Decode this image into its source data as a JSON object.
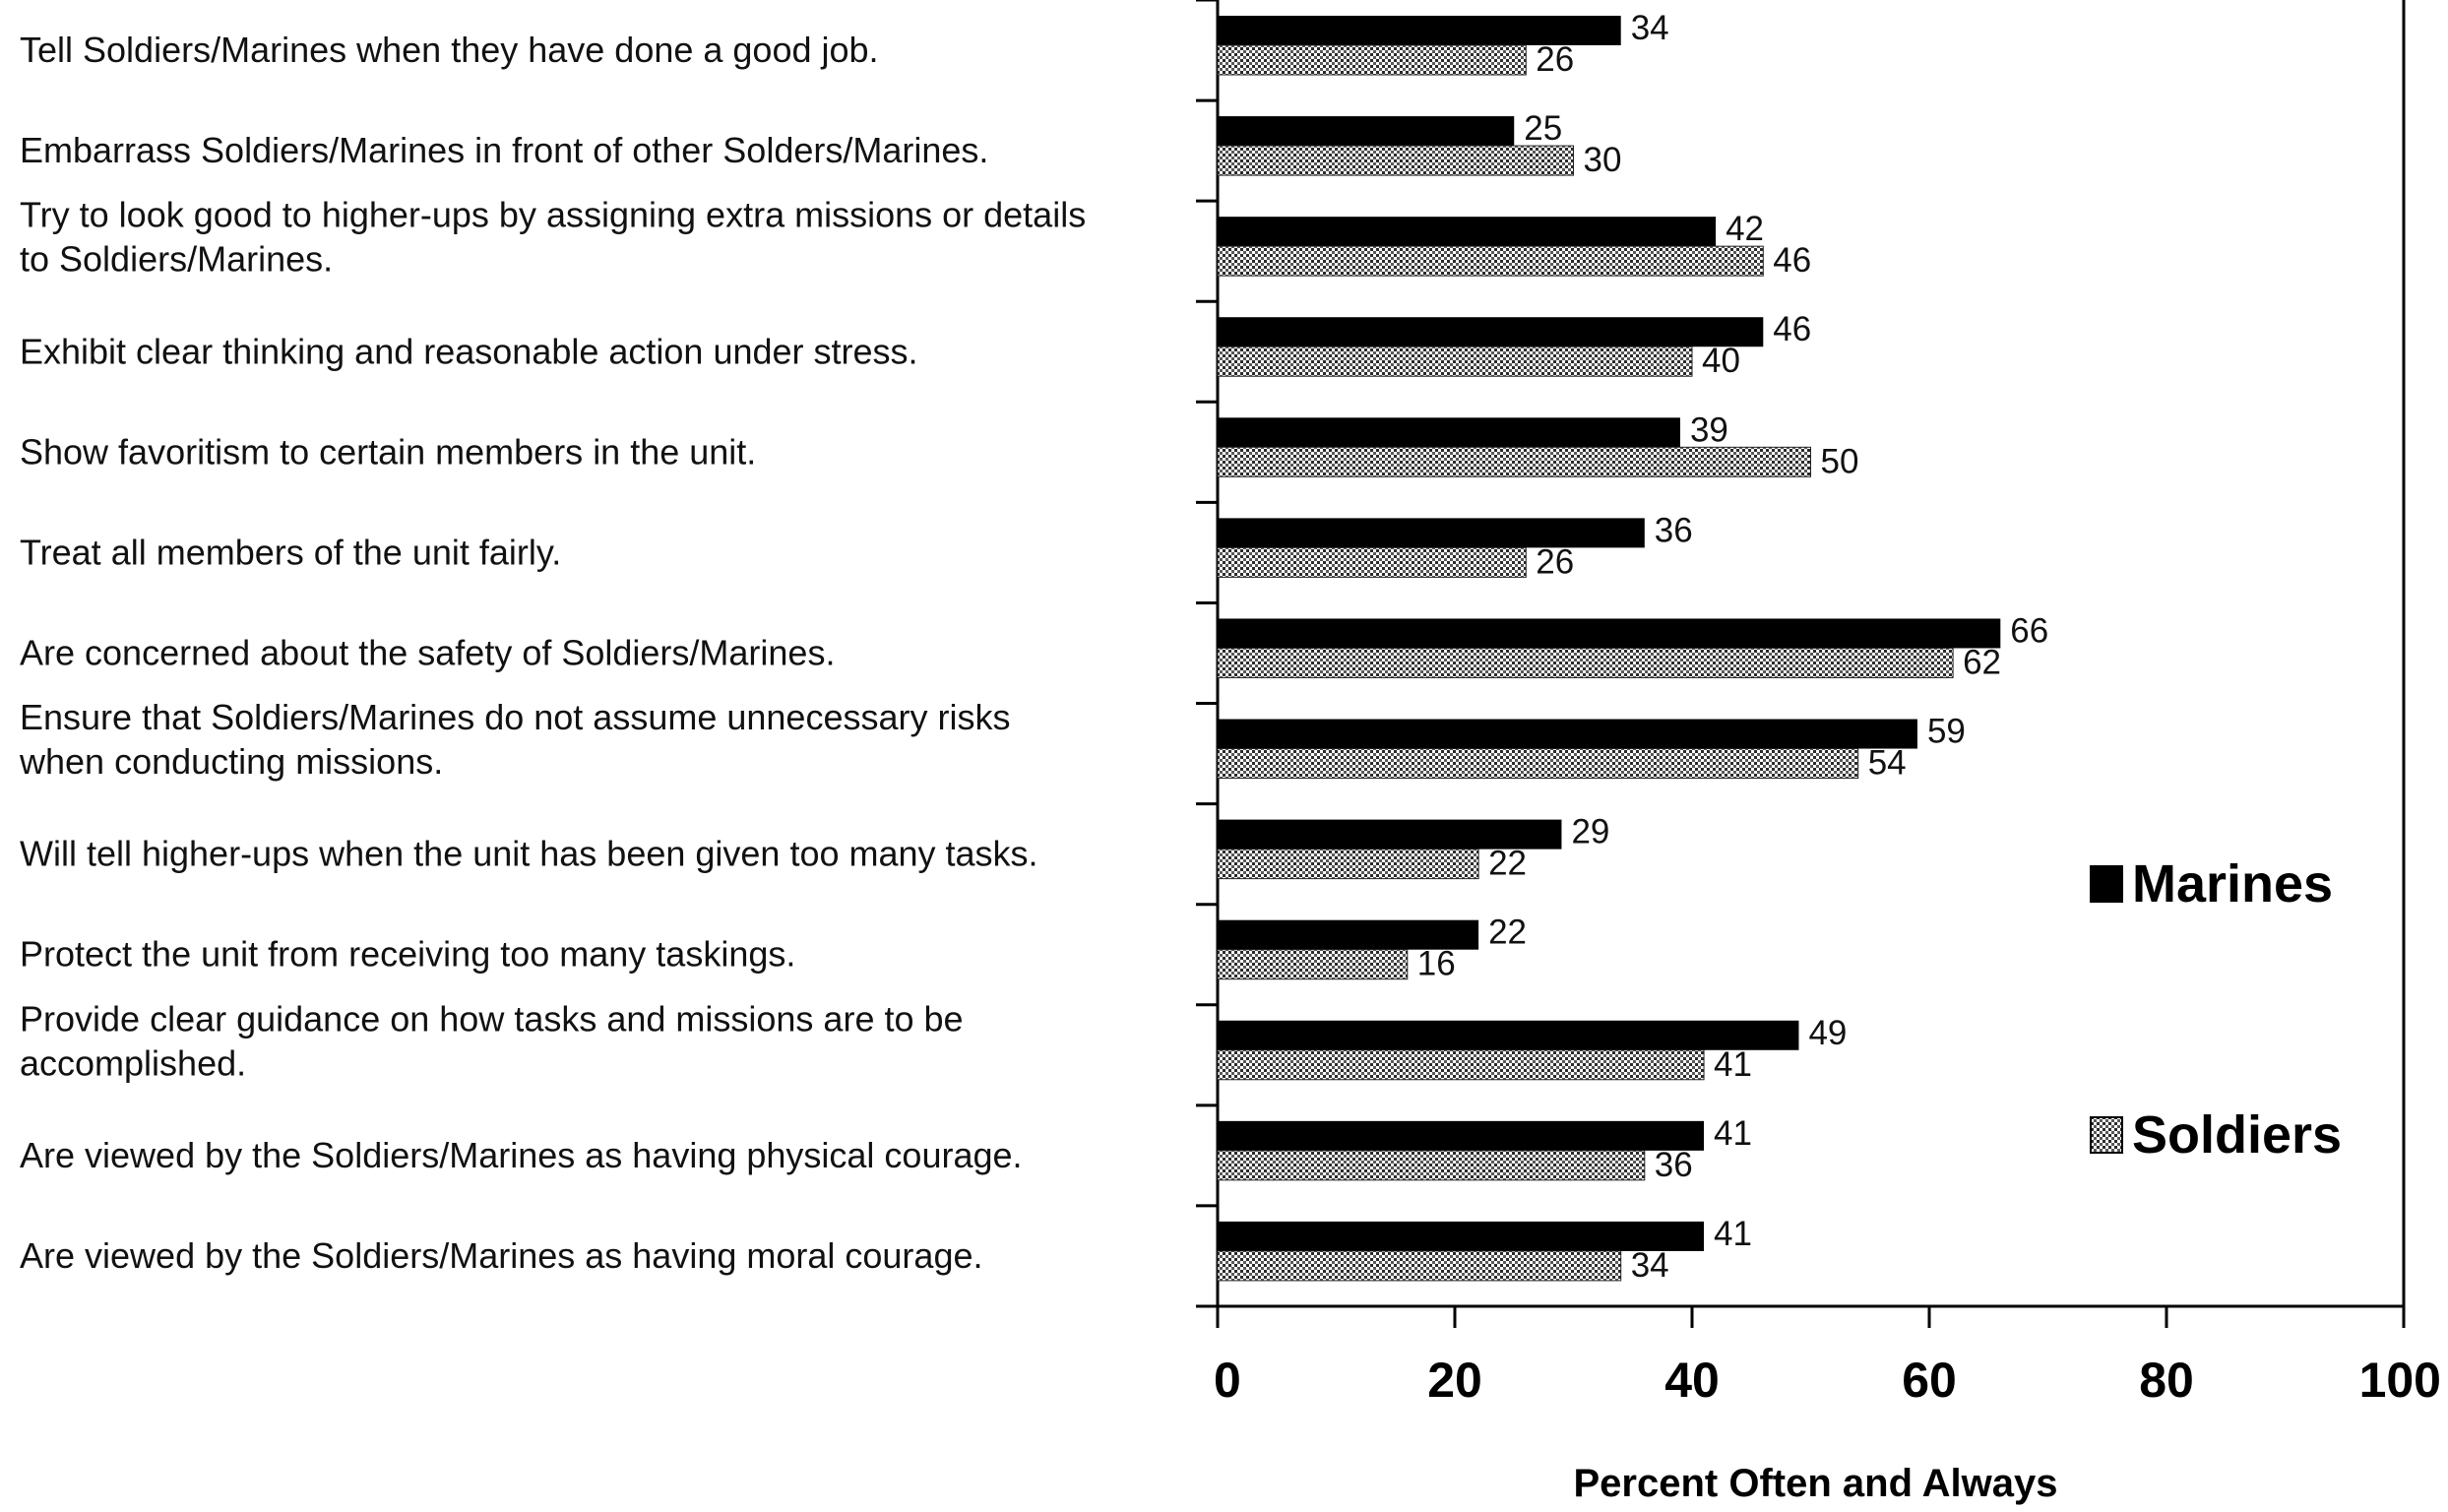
{
  "chart_data": {
    "type": "bar",
    "orientation": "horizontal",
    "categories": [
      [
        "Tell Soldiers/Marines when they have done a good job."
      ],
      [
        "Embarrass Soldiers/Marines in front of other Solders/Marines."
      ],
      [
        "Try to look good to higher-ups by assigning extra missions or details",
        "to Soldiers/Marines."
      ],
      [
        "Exhibit clear thinking and reasonable action under stress."
      ],
      [
        "Show favoritism to certain members in the unit."
      ],
      [
        "Treat all members of the unit fairly."
      ],
      [
        "Are concerned about the safety of Soldiers/Marines."
      ],
      [
        "Ensure that Soldiers/Marines do not assume unnecessary risks",
        "when conducting missions."
      ],
      [
        "Will tell higher-ups when the unit has been given too many tasks."
      ],
      [
        "Protect the unit from receiving too many taskings."
      ],
      [
        "Provide clear guidance on how tasks and missions are to be",
        "accomplished."
      ],
      [
        "Are viewed by the Soldiers/Marines as having physical courage."
      ],
      [
        "Are viewed by the Soldiers/Marines as having moral courage."
      ]
    ],
    "series": [
      {
        "name": "Marines",
        "color": "#000000",
        "pattern": "solid",
        "values": [
          34,
          25,
          42,
          46,
          39,
          36,
          66,
          59,
          29,
          22,
          49,
          41,
          41
        ]
      },
      {
        "name": "Soldiers",
        "color": "#3a3a3a",
        "pattern": "dotted",
        "values": [
          26,
          30,
          46,
          40,
          50,
          26,
          62,
          54,
          22,
          16,
          41,
          36,
          34
        ]
      }
    ],
    "xlabel": "Percent Often and Always",
    "xlim": [
      0,
      100
    ],
    "xticks": [
      "0",
      "20",
      "40",
      "60",
      "80",
      "100"
    ],
    "grid": false,
    "legend_position": "right"
  }
}
